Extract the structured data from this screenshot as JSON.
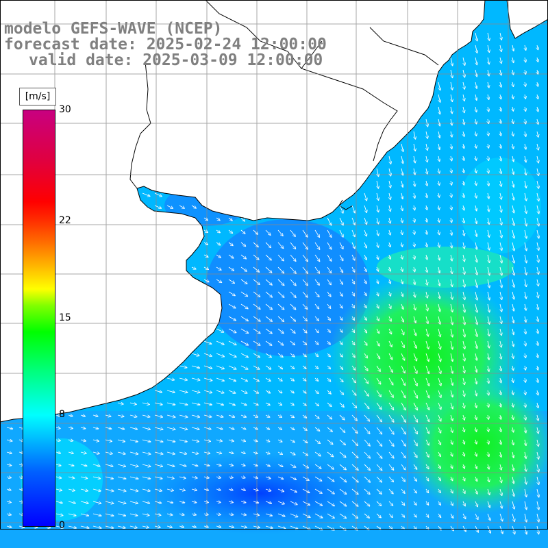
{
  "title": {
    "line1": "modelo GEFS-WAVE (NCEP)",
    "line2": "forecast date: 2025-02-24 12:00:00",
    "line3": "valid date: 2025-03-09 12:00:00"
  },
  "colorbar": {
    "unit": "[m/s]",
    "min": 0,
    "max": 30,
    "ticks": [
      {
        "value": 30,
        "label": "30"
      },
      {
        "value": 22,
        "label": "22"
      },
      {
        "value": 15,
        "label": "15"
      },
      {
        "value": 8,
        "label": "8"
      },
      {
        "value": 0,
        "label": "0"
      }
    ]
  },
  "map": {
    "variable": "wind speed and direction",
    "grid": true
  }
}
